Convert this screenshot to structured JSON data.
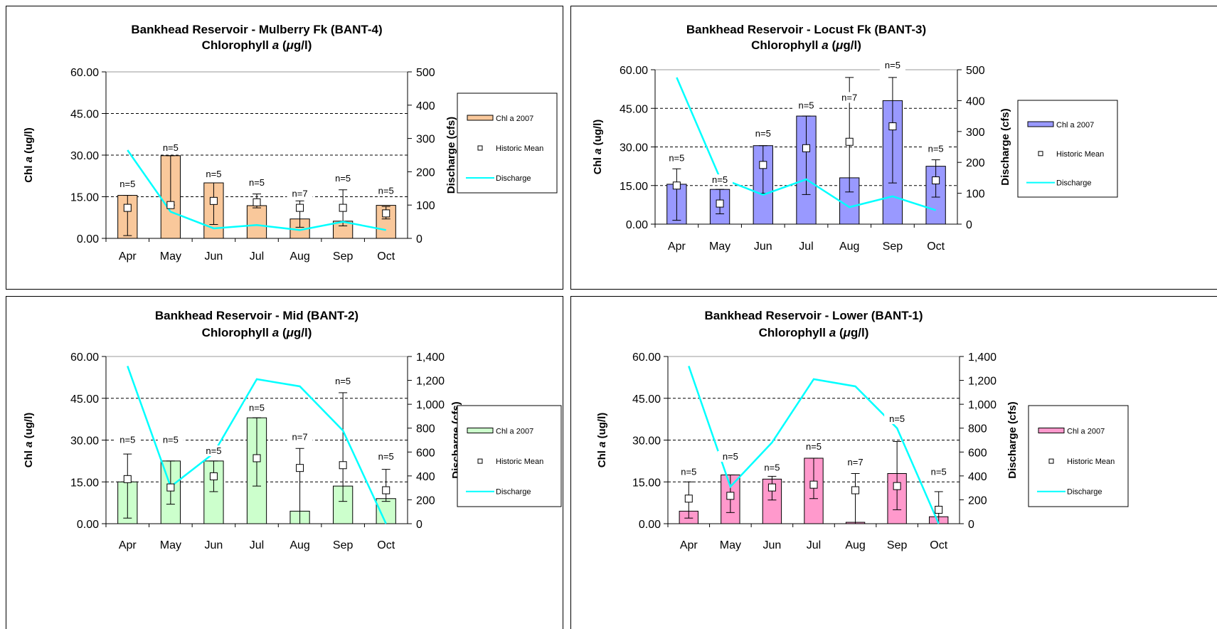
{
  "chart_data": [
    {
      "type": "bar",
      "title": "Bankhead Reservoir - Mulberry Fk (BANT-4)",
      "subtitle_pre": "Chlorophyll ",
      "subtitle_ital": "a",
      "subtitle_mid": " (",
      "subtitle_mu": "μ",
      "subtitle_post": "g/l)",
      "ylabel_pre": "Chl ",
      "ylabel_ital": "a",
      "ylabel_post": "  (ug/l)",
      "y2label": "Discharge (cfs)",
      "categories": [
        "Apr",
        "May",
        "Jun",
        "Jul",
        "Aug",
        "Sep",
        "Oct"
      ],
      "ylim": [
        0,
        60
      ],
      "yticks": [
        "0.00",
        "15.00",
        "30.00",
        "45.00",
        "60.00"
      ],
      "y2lim": [
        0,
        500
      ],
      "y2ticks": [
        "0",
        "100",
        "200",
        "300",
        "400",
        "500"
      ],
      "bar_color": "#f9c89b",
      "bars": [
        15.5,
        29.8,
        20.0,
        11.8,
        7.0,
        6.2,
        11.9
      ],
      "hist_mean": [
        11,
        12,
        13.5,
        13,
        11,
        11,
        9
      ],
      "err_low": [
        1,
        12,
        5,
        11,
        4,
        4.5,
        7
      ],
      "err_high": [
        15.5,
        29.8,
        20,
        16,
        13.5,
        17.5,
        11.5
      ],
      "n_labels": [
        "n=5",
        "n=5",
        "n=5",
        "n=5",
        "n=7",
        "n=5",
        "n=5"
      ],
      "n_y": [
        18.5,
        31.5,
        22,
        19,
        15,
        20.5,
        16
      ],
      "discharge": [
        265,
        80,
        30,
        40,
        25,
        50,
        25
      ],
      "legend": {
        "bar": "Chl a 2007",
        "mean": "Historic Mean",
        "line": "Discharge"
      }
    },
    {
      "type": "bar",
      "title": "Bankhead Reservoir - Locust Fk (BANT-3)",
      "subtitle_pre": "Chlorophyll ",
      "subtitle_ital": "a",
      "subtitle_mid": " (",
      "subtitle_mu": "μ",
      "subtitle_post": "g/l)",
      "ylabel_pre": "Chl ",
      "ylabel_ital": "a",
      "ylabel_post": " (ug/l)",
      "y2label": "Discharge (cfs)",
      "categories": [
        "Apr",
        "May",
        "Jun",
        "Jul",
        "Aug",
        "Sep",
        "Oct"
      ],
      "ylim": [
        0,
        60
      ],
      "yticks": [
        "0.00",
        "15.00",
        "30.00",
        "45.00",
        "60.00"
      ],
      "y2lim": [
        0,
        500
      ],
      "y2ticks": [
        "0",
        "100",
        "200",
        "300",
        "400",
        "500"
      ],
      "bar_color": "#9999ff",
      "bars": [
        15.5,
        13.5,
        30.5,
        42,
        18,
        48,
        22.5
      ],
      "hist_mean": [
        15,
        8,
        23,
        29.5,
        32,
        38,
        17
      ],
      "err_low": [
        1.5,
        4,
        12,
        11.5,
        12.5,
        16,
        10.5
      ],
      "err_high": [
        21.5,
        13.5,
        30.5,
        42,
        57,
        57,
        25
      ],
      "n_labels": [
        "n=5",
        "n=5",
        "n=5",
        "n=5",
        "n=7",
        "n=5",
        "n=5"
      ],
      "n_y": [
        24.5,
        16,
        34,
        45,
        48,
        60.5,
        28
      ],
      "discharge": [
        475,
        150,
        95,
        145,
        55,
        90,
        45
      ],
      "legend": {
        "bar": "Chl a 2007",
        "mean": "Historic Mean",
        "line": "Discharge"
      }
    },
    {
      "type": "bar",
      "title": "Bankhead Reservoir - Mid (BANT-2)",
      "subtitle_pre": "Chlorophyll ",
      "subtitle_ital": "a",
      "subtitle_mid": " (",
      "subtitle_mu": "μ",
      "subtitle_post": "g/l)",
      "ylabel_pre": "Chl ",
      "ylabel_ital": "a",
      "ylabel_post": " (ug/l)",
      "y2label": "Discharge (cfs)",
      "categories": [
        "Apr",
        "May",
        "Jun",
        "Jul",
        "Aug",
        "Sep",
        "Oct"
      ],
      "ylim": [
        0,
        60
      ],
      "yticks": [
        "0.00",
        "15.00",
        "30.00",
        "45.00",
        "60.00"
      ],
      "y2lim": [
        0,
        1400
      ],
      "y2ticks": [
        "0",
        "200",
        "400",
        "600",
        "800",
        "1,000",
        "1,200",
        "1,400"
      ],
      "bar_color": "#ccffcc",
      "bars": [
        15,
        22.5,
        22.5,
        38,
        4.5,
        13.5,
        9
      ],
      "hist_mean": [
        16,
        13,
        17,
        23.5,
        20,
        21,
        12
      ],
      "err_low": [
        2,
        7,
        11.5,
        13.5,
        0,
        8,
        8
      ],
      "err_high": [
        25,
        22.5,
        22.5,
        38,
        27,
        47,
        19.5
      ],
      "n_labels": [
        "n=5",
        "n=5",
        "n=5",
        "n=5",
        "n=7",
        "n=5",
        "n=5"
      ],
      "n_y": [
        29,
        29,
        25,
        40.5,
        30,
        50,
        23
      ],
      "discharge": [
        1320,
        310,
        590,
        1210,
        1150,
        780,
        0
      ],
      "legend": {
        "bar": "Chl a 2007",
        "mean": "Historic Mean",
        "line": "Discharge"
      }
    },
    {
      "type": "bar",
      "title": "Bankhead Reservoir - Lower (BANT-1)",
      "subtitle_pre": "Chlorophyll ",
      "subtitle_ital": "a",
      "subtitle_mid": " (",
      "subtitle_mu": "μ",
      "subtitle_post": "g/l)",
      "ylabel_pre": "Chl ",
      "ylabel_ital": "a",
      "ylabel_post": " (ug/l)",
      "y2label": "Discharge (cfs)",
      "categories": [
        "Apr",
        "May",
        "Jun",
        "Jul",
        "Aug",
        "Sep",
        "Oct"
      ],
      "ylim": [
        0,
        60
      ],
      "yticks": [
        "0.00",
        "15.00",
        "30.00",
        "45.00",
        "60.00"
      ],
      "y2lim": [
        0,
        1400
      ],
      "y2ticks": [
        "0",
        "200",
        "400",
        "600",
        "800",
        "1,000",
        "1,200",
        "1,400"
      ],
      "bar_color": "#ff99cc",
      "bars": [
        4.5,
        17.5,
        16,
        23.5,
        0.5,
        18,
        2.5
      ],
      "hist_mean": [
        9,
        10,
        13,
        14,
        12,
        13.5,
        5
      ],
      "err_low": [
        2,
        4,
        8.5,
        9,
        0,
        5,
        0
      ],
      "err_high": [
        15,
        17.5,
        17,
        23.5,
        18,
        29.5,
        11.5
      ],
      "n_labels": [
        "n=5",
        "n=5",
        "n=5",
        "n=5",
        "n=7",
        "n=5",
        "n=5"
      ],
      "n_y": [
        17.5,
        23,
        19,
        26.5,
        21,
        36.5,
        17.5
      ],
      "discharge": [
        1320,
        310,
        680,
        1210,
        1150,
        800,
        0
      ],
      "legend": {
        "bar": "Chl a 2007",
        "mean": "Historic Mean",
        "line": "Discharge"
      }
    }
  ]
}
